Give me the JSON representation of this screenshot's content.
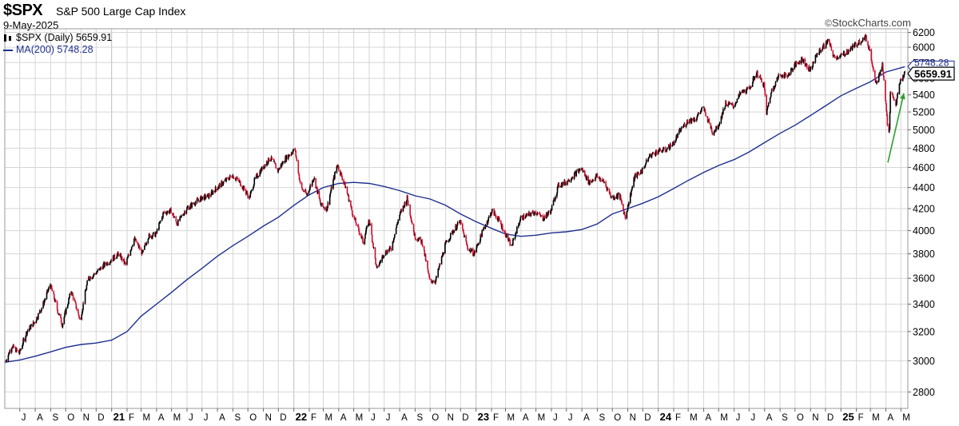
{
  "header": {
    "symbol": "$SPX",
    "name": "S&P 500 Large Cap Index",
    "date": "9-May-2025",
    "brand": "StockCharts.com",
    "brand_mark": "©"
  },
  "legend": {
    "price_label": "$SPX (Daily) 5659.91",
    "ma_label": "MA(200) 5748.28"
  },
  "colors": {
    "up_candle": "#000000",
    "down_candle": "#c8102e",
    "ma_line": "#1f2f8f",
    "grid": "#d6d6d6",
    "arrow": "#2ca02c"
  },
  "chart_data": {
    "type": "line",
    "title": "$SPX S&P 500 Large Cap Index",
    "xlabel": "",
    "ylabel": "",
    "ylim": [
      2700,
      6250
    ],
    "y_scale": "log",
    "y_ticks": [
      2800,
      3000,
      3200,
      3400,
      3600,
      3800,
      4000,
      4200,
      4400,
      4600,
      4800,
      5000,
      5200,
      5400,
      5600,
      5800,
      6000,
      6200
    ],
    "x_range": [
      "2020-06-01",
      "2025-05-15"
    ],
    "x_ticks": [
      {
        "date": "2020-07-01",
        "label": "J"
      },
      {
        "date": "2020-08-01",
        "label": "A"
      },
      {
        "date": "2020-09-01",
        "label": "S"
      },
      {
        "date": "2020-10-01",
        "label": "O"
      },
      {
        "date": "2020-11-01",
        "label": "N"
      },
      {
        "date": "2020-12-01",
        "label": "D"
      },
      {
        "date": "2021-01-01",
        "label": "21"
      },
      {
        "date": "2021-02-01",
        "label": "F"
      },
      {
        "date": "2021-03-01",
        "label": "M"
      },
      {
        "date": "2021-04-01",
        "label": "A"
      },
      {
        "date": "2021-05-01",
        "label": "M"
      },
      {
        "date": "2021-06-01",
        "label": "J"
      },
      {
        "date": "2021-07-01",
        "label": "J"
      },
      {
        "date": "2021-08-01",
        "label": "A"
      },
      {
        "date": "2021-09-01",
        "label": "S"
      },
      {
        "date": "2021-10-01",
        "label": "O"
      },
      {
        "date": "2021-11-01",
        "label": "N"
      },
      {
        "date": "2021-12-01",
        "label": "D"
      },
      {
        "date": "2022-01-01",
        "label": "22"
      },
      {
        "date": "2022-02-01",
        "label": "F"
      },
      {
        "date": "2022-03-01",
        "label": "M"
      },
      {
        "date": "2022-04-01",
        "label": "A"
      },
      {
        "date": "2022-05-01",
        "label": "M"
      },
      {
        "date": "2022-06-01",
        "label": "J"
      },
      {
        "date": "2022-07-01",
        "label": "J"
      },
      {
        "date": "2022-08-01",
        "label": "A"
      },
      {
        "date": "2022-09-01",
        "label": "S"
      },
      {
        "date": "2022-10-01",
        "label": "O"
      },
      {
        "date": "2022-11-01",
        "label": "N"
      },
      {
        "date": "2022-12-01",
        "label": "D"
      },
      {
        "date": "2023-01-01",
        "label": "23"
      },
      {
        "date": "2023-02-01",
        "label": "F"
      },
      {
        "date": "2023-03-01",
        "label": "M"
      },
      {
        "date": "2023-04-01",
        "label": "A"
      },
      {
        "date": "2023-05-01",
        "label": "M"
      },
      {
        "date": "2023-06-01",
        "label": "J"
      },
      {
        "date": "2023-07-01",
        "label": "J"
      },
      {
        "date": "2023-08-01",
        "label": "A"
      },
      {
        "date": "2023-09-01",
        "label": "S"
      },
      {
        "date": "2023-10-01",
        "label": "O"
      },
      {
        "date": "2023-11-01",
        "label": "N"
      },
      {
        "date": "2023-12-01",
        "label": "D"
      },
      {
        "date": "2024-01-01",
        "label": "24"
      },
      {
        "date": "2024-02-01",
        "label": "F"
      },
      {
        "date": "2024-03-01",
        "label": "M"
      },
      {
        "date": "2024-04-01",
        "label": "A"
      },
      {
        "date": "2024-05-01",
        "label": "M"
      },
      {
        "date": "2024-06-01",
        "label": "J"
      },
      {
        "date": "2024-07-01",
        "label": "J"
      },
      {
        "date": "2024-08-01",
        "label": "A"
      },
      {
        "date": "2024-09-01",
        "label": "S"
      },
      {
        "date": "2024-10-01",
        "label": "O"
      },
      {
        "date": "2024-11-01",
        "label": "N"
      },
      {
        "date": "2024-12-01",
        "label": "D"
      },
      {
        "date": "2025-01-01",
        "label": "25"
      },
      {
        "date": "2025-02-01",
        "label": "F"
      },
      {
        "date": "2025-03-01",
        "label": "M"
      },
      {
        "date": "2025-04-01",
        "label": "A"
      },
      {
        "date": "2025-05-01",
        "label": "M"
      }
    ],
    "grid": true,
    "legend_position": "top-left",
    "last_price_label": "5659.91",
    "ma_last_label": "5748.28",
    "series": [
      {
        "name": "$SPX (Daily)",
        "style": "candles",
        "x": [
          "2020-06-03",
          "2020-06-15",
          "2020-06-30",
          "2020-07-15",
          "2020-07-31",
          "2020-08-15",
          "2020-08-31",
          "2020-09-15",
          "2020-09-24",
          "2020-10-12",
          "2020-10-30",
          "2020-11-15",
          "2020-11-30",
          "2020-12-15",
          "2020-12-31",
          "2021-01-15",
          "2021-01-29",
          "2021-02-15",
          "2021-03-04",
          "2021-03-15",
          "2021-03-31",
          "2021-04-15",
          "2021-04-30",
          "2021-05-12",
          "2021-05-31",
          "2021-06-15",
          "2021-06-30",
          "2021-07-15",
          "2021-07-31",
          "2021-08-15",
          "2021-08-31",
          "2021-09-15",
          "2021-10-04",
          "2021-10-15",
          "2021-10-31",
          "2021-11-15",
          "2021-11-30",
          "2021-12-15",
          "2022-01-03",
          "2022-01-15",
          "2022-01-27",
          "2022-02-10",
          "2022-02-24",
          "2022-03-08",
          "2022-03-29",
          "2022-04-15",
          "2022-04-30",
          "2022-05-20",
          "2022-06-01",
          "2022-06-16",
          "2022-06-30",
          "2022-07-15",
          "2022-07-31",
          "2022-08-16",
          "2022-08-31",
          "2022-09-15",
          "2022-09-30",
          "2022-10-12",
          "2022-10-31",
          "2022-11-15",
          "2022-11-30",
          "2022-12-15",
          "2022-12-28",
          "2023-01-15",
          "2023-02-02",
          "2023-02-15",
          "2023-03-13",
          "2023-03-31",
          "2023-04-15",
          "2023-04-30",
          "2023-05-15",
          "2023-05-31",
          "2023-06-15",
          "2023-06-30",
          "2023-07-31",
          "2023-08-15",
          "2023-08-31",
          "2023-09-15",
          "2023-09-30",
          "2023-10-15",
          "2023-10-27",
          "2023-11-15",
          "2023-11-30",
          "2023-12-15",
          "2023-12-31",
          "2024-01-15",
          "2024-01-31",
          "2024-02-15",
          "2024-02-29",
          "2024-03-15",
          "2024-03-31",
          "2024-04-19",
          "2024-04-30",
          "2024-05-15",
          "2024-05-31",
          "2024-06-15",
          "2024-06-30",
          "2024-07-16",
          "2024-07-31",
          "2024-08-05",
          "2024-08-15",
          "2024-08-31",
          "2024-09-15",
          "2024-09-30",
          "2024-10-15",
          "2024-10-31",
          "2024-11-15",
          "2024-11-30",
          "2024-12-06",
          "2024-12-18",
          "2024-12-31",
          "2025-01-15",
          "2025-01-31",
          "2025-02-19",
          "2025-02-28",
          "2025-03-13",
          "2025-03-25",
          "2025-04-04",
          "2025-04-08",
          "2025-04-10",
          "2025-04-21",
          "2025-04-30",
          "2025-05-09"
        ],
        "values": [
          3000,
          3100,
          3050,
          3200,
          3270,
          3380,
          3550,
          3350,
          3250,
          3500,
          3280,
          3600,
          3640,
          3700,
          3750,
          3800,
          3710,
          3930,
          3800,
          3950,
          3970,
          4160,
          4180,
          4060,
          4200,
          4250,
          4300,
          4320,
          4400,
          4460,
          4520,
          4450,
          4300,
          4480,
          4600,
          4700,
          4570,
          4690,
          4790,
          4400,
          4330,
          4500,
          4230,
          4200,
          4630,
          4400,
          4130,
          3900,
          4100,
          3670,
          3800,
          3850,
          4130,
          4300,
          3950,
          3900,
          3580,
          3580,
          3870,
          3990,
          4080,
          3850,
          3800,
          4000,
          4180,
          4100,
          3860,
          4110,
          4140,
          4170,
          4110,
          4180,
          4420,
          4450,
          4590,
          4450,
          4510,
          4450,
          4300,
          4330,
          4120,
          4510,
          4570,
          4720,
          4770,
          4780,
          4850,
          5000,
          5100,
          5120,
          5250,
          4970,
          5040,
          5300,
          5270,
          5430,
          5460,
          5670,
          5520,
          5190,
          5450,
          5650,
          5630,
          5760,
          5850,
          5700,
          5920,
          6030,
          6090,
          5870,
          5880,
          5950,
          6040,
          6140,
          5950,
          5520,
          5770,
          5070,
          4980,
          5460,
          5290,
          5570,
          5659.91
        ]
      },
      {
        "name": "MA(200)",
        "style": "line",
        "x": [
          "2020-06-01",
          "2020-07-01",
          "2020-08-01",
          "2020-09-01",
          "2020-10-01",
          "2020-11-01",
          "2020-12-01",
          "2021-01-01",
          "2021-02-01",
          "2021-03-01",
          "2021-04-01",
          "2021-05-01",
          "2021-06-01",
          "2021-07-01",
          "2021-08-01",
          "2021-09-01",
          "2021-10-01",
          "2021-11-01",
          "2021-12-01",
          "2022-01-01",
          "2022-02-01",
          "2022-03-01",
          "2022-04-01",
          "2022-05-01",
          "2022-06-01",
          "2022-07-01",
          "2022-08-01",
          "2022-09-01",
          "2022-10-01",
          "2022-11-01",
          "2022-12-01",
          "2023-01-01",
          "2023-02-01",
          "2023-03-01",
          "2023-04-01",
          "2023-05-01",
          "2023-06-01",
          "2023-07-01",
          "2023-08-01",
          "2023-09-01",
          "2023-10-01",
          "2023-11-01",
          "2023-12-01",
          "2024-01-01",
          "2024-02-01",
          "2024-03-01",
          "2024-04-01",
          "2024-05-01",
          "2024-06-01",
          "2024-07-01",
          "2024-08-01",
          "2024-09-01",
          "2024-10-01",
          "2024-11-01",
          "2024-12-01",
          "2025-01-01",
          "2025-02-01",
          "2025-03-01",
          "2025-04-01",
          "2025-05-09"
        ],
        "values": [
          2990,
          3005,
          3030,
          3060,
          3090,
          3110,
          3120,
          3140,
          3200,
          3310,
          3400,
          3490,
          3590,
          3680,
          3780,
          3870,
          3950,
          4040,
          4120,
          4230,
          4330,
          4400,
          4440,
          4450,
          4440,
          4410,
          4370,
          4320,
          4290,
          4230,
          4150,
          4080,
          4020,
          3970,
          3950,
          3960,
          3980,
          3990,
          4010,
          4060,
          4150,
          4200,
          4250,
          4310,
          4390,
          4470,
          4550,
          4620,
          4680,
          4760,
          4860,
          4960,
          5050,
          5160,
          5270,
          5390,
          5480,
          5560,
          5680,
          5748.28
        ]
      }
    ]
  }
}
